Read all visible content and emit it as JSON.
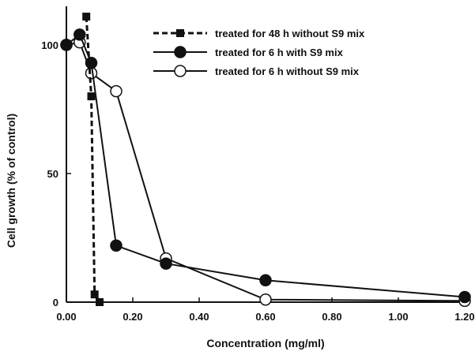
{
  "chart_data": {
    "type": "line",
    "xlabel": "Concentration (mg/ml)",
    "ylabel": "Cell growth (% of control)",
    "xlim": [
      0,
      1.2
    ],
    "ylim": [
      0,
      115
    ],
    "x_ticks": [
      "0.00",
      "0.20",
      "0.40",
      "0.60",
      "0.80",
      "1.00",
      "1.20"
    ],
    "y_ticks": [
      "0",
      "50",
      "100"
    ],
    "grid": false,
    "legend_position": "top-right",
    "series": [
      {
        "name": "treated for 48 h without S9 mix",
        "marker": "filled-square",
        "line": "dashed",
        "points": [
          {
            "x": 0.06,
            "y": 111
          },
          {
            "x": 0.075,
            "y": 80
          },
          {
            "x": 0.085,
            "y": 3
          },
          {
            "x": 0.1,
            "y": 0
          }
        ]
      },
      {
        "name": "treated for 6 h with S9 mix",
        "marker": "filled-circle",
        "line": "solid",
        "points": [
          {
            "x": 0.0,
            "y": 100
          },
          {
            "x": 0.04,
            "y": 104
          },
          {
            "x": 0.075,
            "y": 93
          },
          {
            "x": 0.15,
            "y": 22
          },
          {
            "x": 0.3,
            "y": 15
          },
          {
            "x": 0.6,
            "y": 8.5
          },
          {
            "x": 1.2,
            "y": 2
          }
        ]
      },
      {
        "name": "treated for 6 h without S9 mix",
        "marker": "open-circle",
        "line": "solid",
        "points": [
          {
            "x": 0.0,
            "y": 100
          },
          {
            "x": 0.04,
            "y": 101
          },
          {
            "x": 0.075,
            "y": 89
          },
          {
            "x": 0.15,
            "y": 82
          },
          {
            "x": 0.3,
            "y": 17
          },
          {
            "x": 0.6,
            "y": 1
          },
          {
            "x": 1.2,
            "y": 0.5
          }
        ]
      }
    ]
  }
}
